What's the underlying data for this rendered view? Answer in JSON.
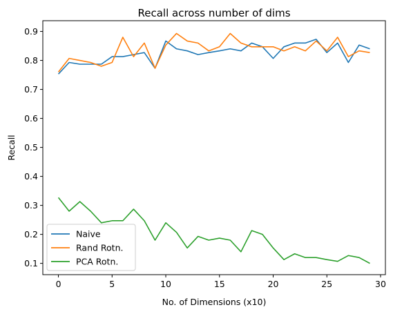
{
  "chart_data": {
    "type": "line",
    "title": "Recall across number of dims",
    "xlabel": "No. of Dimensions (x10)",
    "ylabel": "Recall",
    "xlim": [
      -1.45,
      30.45
    ],
    "ylim": [
      0.061,
      0.937
    ],
    "xticks": [
      0,
      5,
      10,
      15,
      20,
      25,
      30
    ],
    "yticks": [
      0.1,
      0.2,
      0.3,
      0.4,
      0.5,
      0.6,
      0.7,
      0.8,
      0.9
    ],
    "ytick_labels": [
      "0.1",
      "0.2",
      "0.3",
      "0.4",
      "0.5",
      "0.6",
      "0.7",
      "0.8",
      "0.9"
    ],
    "grid": false,
    "legend_position": "lower-left",
    "x": [
      0,
      1,
      2,
      3,
      4,
      5,
      6,
      7,
      8,
      9,
      10,
      11,
      12,
      13,
      14,
      15,
      16,
      17,
      18,
      19,
      20,
      21,
      22,
      23,
      24,
      25,
      26,
      27,
      28,
      29
    ],
    "series": [
      {
        "name": "Naive",
        "color": "#1f77b4",
        "values": [
          0.753,
          0.793,
          0.787,
          0.787,
          0.787,
          0.813,
          0.813,
          0.82,
          0.827,
          0.773,
          0.867,
          0.84,
          0.833,
          0.82,
          0.827,
          0.833,
          0.84,
          0.833,
          0.86,
          0.847,
          0.807,
          0.847,
          0.86,
          0.86,
          0.873,
          0.827,
          0.86,
          0.793,
          0.853,
          0.84
        ]
      },
      {
        "name": "Rand Rotn.",
        "color": "#ff7f0e",
        "values": [
          0.76,
          0.807,
          0.8,
          0.793,
          0.78,
          0.793,
          0.88,
          0.813,
          0.86,
          0.773,
          0.853,
          0.893,
          0.867,
          0.86,
          0.833,
          0.847,
          0.893,
          0.86,
          0.847,
          0.847,
          0.847,
          0.833,
          0.847,
          0.833,
          0.867,
          0.833,
          0.88,
          0.813,
          0.833,
          0.827
        ]
      },
      {
        "name": "PCA Rotn.",
        "color": "#2ca02c",
        "values": [
          0.327,
          0.28,
          0.313,
          0.28,
          0.24,
          0.247,
          0.247,
          0.287,
          0.247,
          0.18,
          0.24,
          0.207,
          0.153,
          0.193,
          0.18,
          0.187,
          0.18,
          0.14,
          0.213,
          0.2,
          0.153,
          0.113,
          0.133,
          0.12,
          0.12,
          0.113,
          0.107,
          0.127,
          0.12,
          0.1
        ]
      }
    ]
  }
}
